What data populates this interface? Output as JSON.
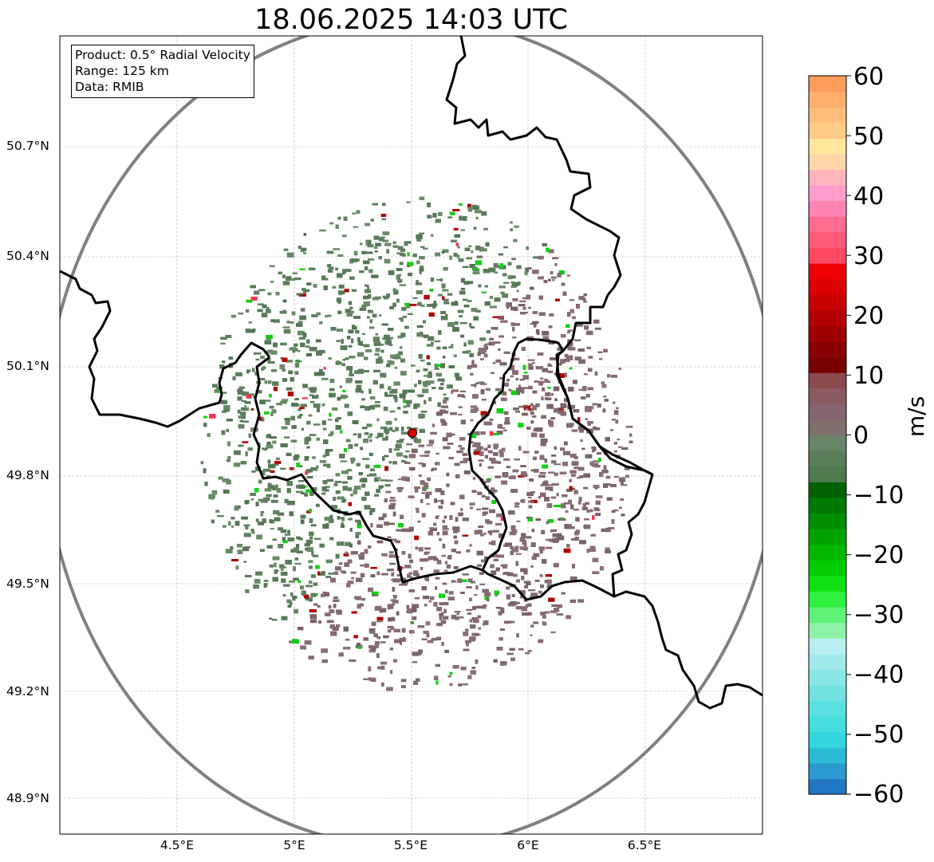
{
  "title": "18.06.2025 14:03 UTC",
  "info_box": {
    "product": "Product: 0.5° Radial Velocity",
    "range": "Range: 125 km",
    "data": "Data: RMIB"
  },
  "map": {
    "lon_range": [
      4.0,
      7.0
    ],
    "lat_range": [
      48.8,
      50.98
    ],
    "lat_ticks": [
      "50.7°N",
      "50.4°N",
      "50.1°N",
      "49.8°N",
      "49.5°N",
      "49.2°N",
      "48.9°N"
    ],
    "lon_ticks": [
      "4.5°E",
      "5°E",
      "5.5°E",
      "6°E",
      "6.5°E"
    ],
    "radar_site": {
      "lon": 5.505,
      "lat": 49.915
    },
    "range_ring_km": 125,
    "colors": {
      "range_ring": "#808080",
      "border": "#000000",
      "radar_marker": "#e00000",
      "grid": "#b0b0b0"
    }
  },
  "colorbar": {
    "unit": "m/s",
    "range": [
      -60,
      60
    ],
    "ticks": [
      "60",
      "50",
      "40",
      "30",
      "20",
      "10",
      "0",
      "−10",
      "−20",
      "−30",
      "−40",
      "−50",
      "−60"
    ],
    "colors": [
      "#2277c4",
      "#2a9ad0",
      "#2cbbd6",
      "#33d6de",
      "#44dede",
      "#5ae0e0",
      "#72e2e2",
      "#8ae6e6",
      "#a2eaea",
      "#b8eef0",
      "#8ef2a6",
      "#5ef276",
      "#30f040",
      "#10e010",
      "#00cc00",
      "#00b800",
      "#00a300",
      "#008f00",
      "#007a00",
      "#006200",
      "#4e7a4e",
      "#5a7e5a",
      "#688568",
      "#80706e",
      "#876472",
      "#8a5a60",
      "#8a4a4e",
      "#7a0000",
      "#8a0000",
      "#a00000",
      "#b40000",
      "#c80000",
      "#dc0000",
      "#f00000",
      "#ff4a64",
      "#ff5a78",
      "#ff6c90",
      "#ff84b4",
      "#ff9ccc",
      "#ffb4bc",
      "#ffd6a8",
      "#ffe69c",
      "#ffcc88",
      "#ffbe7c",
      "#ffae6c",
      "#ff9c5c"
    ]
  }
}
